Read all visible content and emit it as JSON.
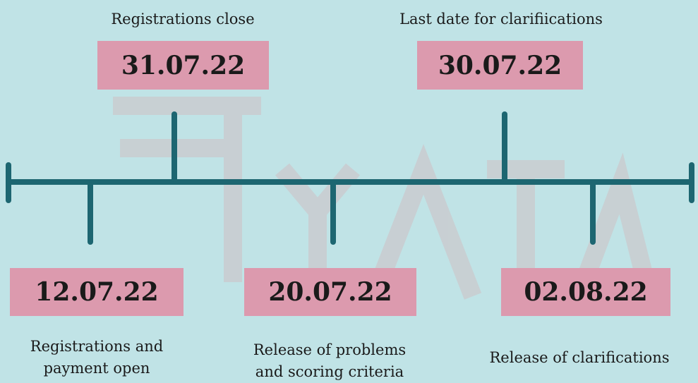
{
  "events": [
    {
      "date": "31.07.22",
      "label": [
        "Registrations close"
      ]
    },
    {
      "date": "30.07.22",
      "label": [
        "Last date for clarifiications"
      ]
    },
    {
      "date": "12.07.22",
      "label": [
        "Registrations and",
        "payment open"
      ]
    },
    {
      "date": "20.07.22",
      "label": [
        "Release of problems",
        "and scoring criteria"
      ]
    },
    {
      "date": "02.08.22",
      "label": [
        "Release of clarifications"
      ]
    }
  ]
}
